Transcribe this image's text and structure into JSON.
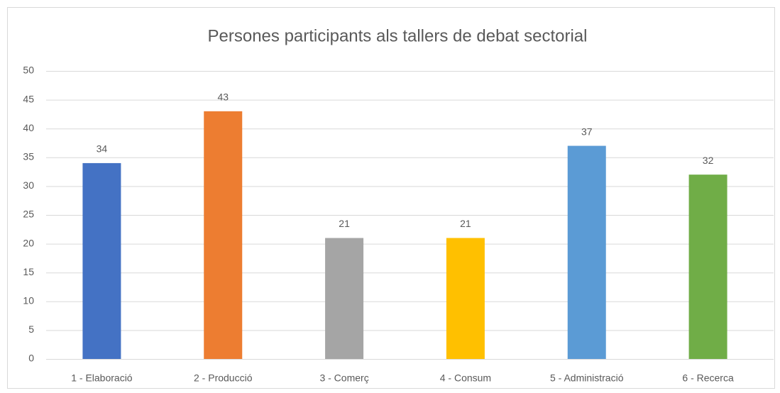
{
  "chart_data": {
    "type": "bar",
    "title": "Persones participants als tallers de debat sectorial",
    "categories": [
      "1 - Elaboració",
      "2 - Producció",
      "3 - Comerç",
      "4 - Consum",
      "5 - Administració",
      "6 - Recerca"
    ],
    "values": [
      34,
      43,
      21,
      21,
      37,
      32
    ],
    "colors": [
      "#4472c4",
      "#ed7d31",
      "#a5a5a5",
      "#ffc000",
      "#5b9bd5",
      "#70ad47"
    ],
    "ylim": [
      0,
      50
    ],
    "yticks": [
      0,
      5,
      10,
      15,
      20,
      25,
      30,
      35,
      40,
      45,
      50
    ],
    "grid": true
  }
}
